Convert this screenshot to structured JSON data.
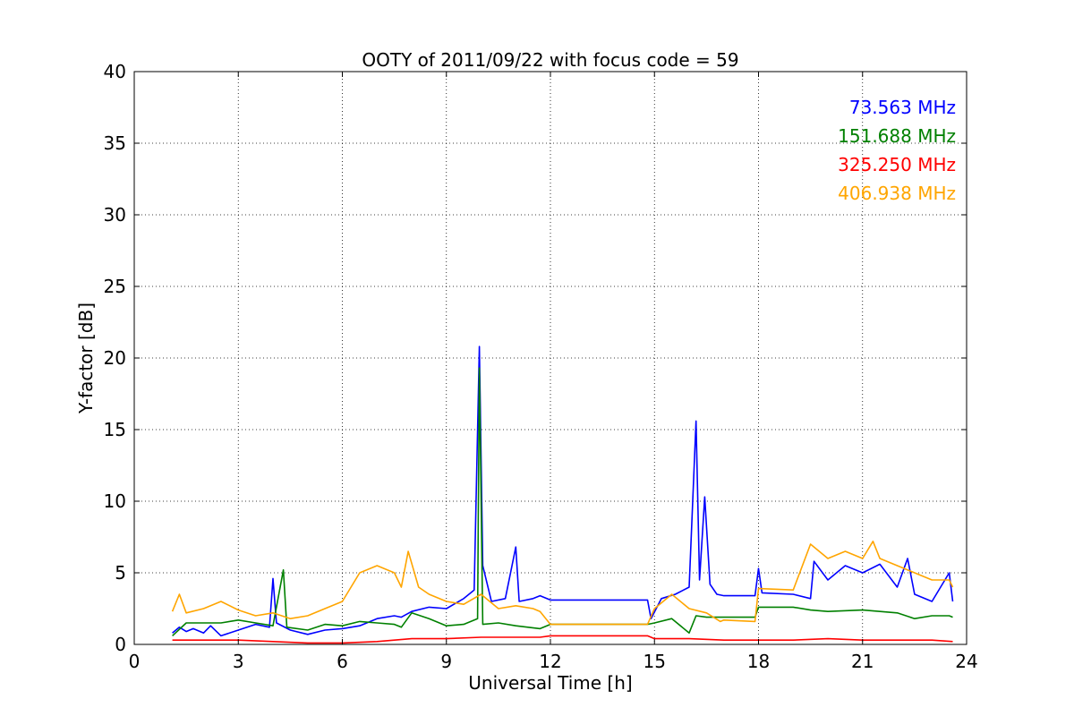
{
  "chart_data": {
    "type": "line",
    "title": "OOTY of 2011/09/22 with focus code = 59",
    "xlabel": "Universal Time [h]",
    "ylabel": "Y-factor [dB]",
    "xlim": [
      0,
      24
    ],
    "ylim": [
      0,
      40
    ],
    "xticks": [
      "0",
      "3",
      "6",
      "9",
      "12",
      "15",
      "18",
      "21",
      "24"
    ],
    "yticks": [
      "0",
      "5",
      "10",
      "15",
      "20",
      "25",
      "30",
      "35",
      "40"
    ],
    "grid": true,
    "legend_placement": "top-right",
    "series": [
      {
        "name": "73.563 MHz",
        "color": "#0000ff",
        "points": [
          [
            1.1,
            0.8
          ],
          [
            1.3,
            1.2
          ],
          [
            1.5,
            0.9
          ],
          [
            1.7,
            1.1
          ],
          [
            2.0,
            0.8
          ],
          [
            2.2,
            1.3
          ],
          [
            2.5,
            0.6
          ],
          [
            3.0,
            1.0
          ],
          [
            3.5,
            1.4
          ],
          [
            3.9,
            1.2
          ],
          [
            4.0,
            4.6
          ],
          [
            4.1,
            1.5
          ],
          [
            4.5,
            1.0
          ],
          [
            5.0,
            0.7
          ],
          [
            5.5,
            1.0
          ],
          [
            6.0,
            1.1
          ],
          [
            6.5,
            1.3
          ],
          [
            7.0,
            1.8
          ],
          [
            7.5,
            2.0
          ],
          [
            7.7,
            1.9
          ],
          [
            8.0,
            2.3
          ],
          [
            8.5,
            2.6
          ],
          [
            9.0,
            2.5
          ],
          [
            9.5,
            3.2
          ],
          [
            9.8,
            3.8
          ],
          [
            9.95,
            20.8
          ],
          [
            10.05,
            5.5
          ],
          [
            10.3,
            3.0
          ],
          [
            10.7,
            3.2
          ],
          [
            11.0,
            6.8
          ],
          [
            11.1,
            3.0
          ],
          [
            11.5,
            3.2
          ],
          [
            11.7,
            3.4
          ],
          [
            12.0,
            3.1
          ],
          [
            13.0,
            3.1
          ],
          [
            14.8,
            3.1
          ],
          [
            14.9,
            1.8
          ],
          [
            15.2,
            3.2
          ],
          [
            15.6,
            3.5
          ],
          [
            16.0,
            4.0
          ],
          [
            16.2,
            15.6
          ],
          [
            16.3,
            4.5
          ],
          [
            16.45,
            10.3
          ],
          [
            16.6,
            4.2
          ],
          [
            16.8,
            3.5
          ],
          [
            17.0,
            3.4
          ],
          [
            17.9,
            3.4
          ],
          [
            18.0,
            5.3
          ],
          [
            18.1,
            3.6
          ],
          [
            19.0,
            3.5
          ],
          [
            19.5,
            3.2
          ],
          [
            19.6,
            5.8
          ],
          [
            20.0,
            4.5
          ],
          [
            20.5,
            5.5
          ],
          [
            21.0,
            5.0
          ],
          [
            21.5,
            5.6
          ],
          [
            22.0,
            4.0
          ],
          [
            22.3,
            6.0
          ],
          [
            22.5,
            3.5
          ],
          [
            23.0,
            3.0
          ],
          [
            23.5,
            5.0
          ],
          [
            23.6,
            3.0
          ]
        ]
      },
      {
        "name": "151.688 MHz",
        "color": "#008000",
        "points": [
          [
            1.1,
            0.6
          ],
          [
            1.5,
            1.5
          ],
          [
            2.0,
            1.5
          ],
          [
            2.5,
            1.5
          ],
          [
            3.0,
            1.7
          ],
          [
            3.5,
            1.5
          ],
          [
            4.0,
            1.3
          ],
          [
            4.3,
            5.2
          ],
          [
            4.4,
            1.2
          ],
          [
            5.0,
            1.0
          ],
          [
            5.5,
            1.4
          ],
          [
            6.0,
            1.3
          ],
          [
            6.5,
            1.6
          ],
          [
            7.0,
            1.5
          ],
          [
            7.5,
            1.4
          ],
          [
            7.7,
            1.2
          ],
          [
            8.0,
            2.2
          ],
          [
            8.5,
            1.8
          ],
          [
            9.0,
            1.3
          ],
          [
            9.5,
            1.4
          ],
          [
            9.9,
            1.8
          ],
          [
            9.95,
            19.3
          ],
          [
            10.05,
            1.4
          ],
          [
            10.5,
            1.5
          ],
          [
            11.0,
            1.3
          ],
          [
            11.7,
            1.1
          ],
          [
            12.0,
            1.4
          ],
          [
            14.8,
            1.4
          ],
          [
            15.0,
            1.5
          ],
          [
            15.5,
            1.8
          ],
          [
            16.0,
            0.8
          ],
          [
            16.2,
            2.0
          ],
          [
            16.5,
            1.9
          ],
          [
            17.0,
            1.9
          ],
          [
            17.9,
            1.9
          ],
          [
            18.0,
            2.6
          ],
          [
            19.0,
            2.6
          ],
          [
            19.5,
            2.4
          ],
          [
            20.0,
            2.3
          ],
          [
            21.0,
            2.4
          ],
          [
            22.0,
            2.2
          ],
          [
            22.5,
            1.8
          ],
          [
            23.0,
            2.0
          ],
          [
            23.5,
            2.0
          ],
          [
            23.6,
            1.9
          ]
        ]
      },
      {
        "name": "325.250 MHz",
        "color": "#ff0000",
        "points": [
          [
            1.1,
            0.3
          ],
          [
            2.0,
            0.3
          ],
          [
            3.0,
            0.3
          ],
          [
            4.0,
            0.2
          ],
          [
            5.0,
            0.1
          ],
          [
            6.0,
            0.1
          ],
          [
            7.0,
            0.2
          ],
          [
            8.0,
            0.4
          ],
          [
            9.0,
            0.4
          ],
          [
            10.0,
            0.5
          ],
          [
            11.0,
            0.5
          ],
          [
            11.7,
            0.5
          ],
          [
            12.0,
            0.6
          ],
          [
            14.8,
            0.6
          ],
          [
            15.0,
            0.4
          ],
          [
            16.0,
            0.4
          ],
          [
            17.0,
            0.3
          ],
          [
            18.0,
            0.3
          ],
          [
            19.0,
            0.3
          ],
          [
            20.0,
            0.4
          ],
          [
            21.0,
            0.3
          ],
          [
            22.0,
            0.3
          ],
          [
            23.0,
            0.3
          ],
          [
            23.6,
            0.2
          ]
        ]
      },
      {
        "name": "406.938 MHz",
        "color": "#ffa500",
        "points": [
          [
            1.1,
            2.3
          ],
          [
            1.3,
            3.5
          ],
          [
            1.5,
            2.2
          ],
          [
            2.0,
            2.5
          ],
          [
            2.5,
            3.0
          ],
          [
            3.0,
            2.4
          ],
          [
            3.5,
            2.0
          ],
          [
            4.0,
            2.2
          ],
          [
            4.5,
            1.8
          ],
          [
            5.0,
            2.0
          ],
          [
            5.5,
            2.5
          ],
          [
            6.0,
            3.0
          ],
          [
            6.5,
            5.0
          ],
          [
            7.0,
            5.5
          ],
          [
            7.5,
            5.0
          ],
          [
            7.7,
            4.0
          ],
          [
            7.9,
            6.5
          ],
          [
            8.2,
            4.0
          ],
          [
            8.5,
            3.5
          ],
          [
            9.0,
            3.0
          ],
          [
            9.5,
            2.8
          ],
          [
            10.0,
            3.5
          ],
          [
            10.5,
            2.5
          ],
          [
            11.0,
            2.7
          ],
          [
            11.5,
            2.5
          ],
          [
            11.7,
            2.3
          ],
          [
            12.0,
            1.4
          ],
          [
            14.8,
            1.4
          ],
          [
            15.0,
            2.5
          ],
          [
            15.5,
            3.5
          ],
          [
            16.0,
            2.5
          ],
          [
            16.5,
            2.2
          ],
          [
            16.9,
            1.6
          ],
          [
            17.0,
            1.7
          ],
          [
            17.9,
            1.6
          ],
          [
            18.0,
            3.9
          ],
          [
            19.0,
            3.8
          ],
          [
            19.5,
            7.0
          ],
          [
            20.0,
            6.0
          ],
          [
            20.5,
            6.5
          ],
          [
            21.0,
            6.0
          ],
          [
            21.3,
            7.2
          ],
          [
            21.5,
            6.0
          ],
          [
            22.0,
            5.5
          ],
          [
            22.5,
            5.0
          ],
          [
            23.0,
            4.5
          ],
          [
            23.5,
            4.5
          ],
          [
            23.6,
            4.0
          ]
        ]
      }
    ]
  }
}
